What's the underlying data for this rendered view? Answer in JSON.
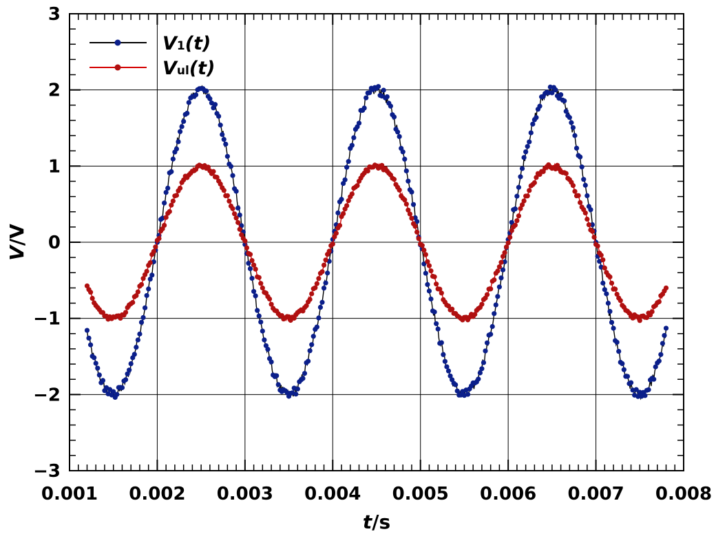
{
  "chart_data": {
    "type": "line",
    "xlabel": {
      "var": "t",
      "unit": "s"
    },
    "ylabel": {
      "var": "V",
      "unit": "V"
    },
    "xlim": [
      0.001,
      0.008
    ],
    "ylim": [
      -3,
      3
    ],
    "x_ticks": [
      "0.001",
      "0.002",
      "0.003",
      "0.004",
      "0.005",
      "0.006",
      "0.007",
      "0.008"
    ],
    "y_ticks": [
      "−3",
      "−2",
      "−1",
      "0",
      "1",
      "2",
      "3"
    ],
    "grid": true,
    "legend_position": "top-left",
    "series": [
      {
        "legend_base": "V",
        "legend_sub": "1",
        "legend_suffix": "(t)",
        "line_color": "#000000",
        "marker_color": "#0b1f8a",
        "amplitude": 2.0,
        "t_start": 0.0012,
        "t_end": 0.0078,
        "period": 0.002,
        "peak_t": 0.0025,
        "sample_interval": 1e-05
      },
      {
        "legend_base": "V",
        "legend_sub": "ul",
        "legend_suffix": "(t)",
        "line_color": "#d40000",
        "marker_color": "#b01010",
        "amplitude": 1.0,
        "t_start": 0.0012,
        "t_end": 0.0078,
        "period": 0.002,
        "peak_t": 0.0025,
        "sample_interval": 1e-05
      }
    ]
  }
}
